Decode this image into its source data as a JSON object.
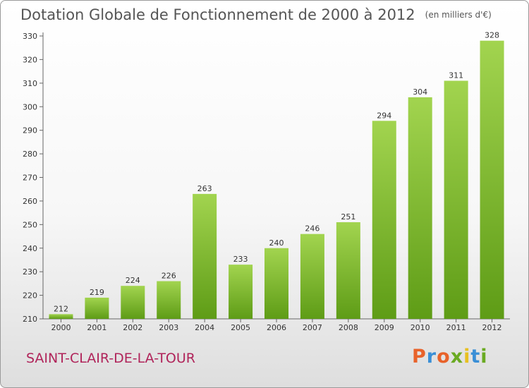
{
  "header": {
    "title": "Dotation Globale de Fonctionnement de 2000 à 2012",
    "unit": "(en milliers d'€)"
  },
  "footer": {
    "commune": "SAINT-CLAIR-DE-LA-TOUR",
    "logo": "Proxiti",
    "logo_colors": [
      "#e8622a",
      "#3a8fd6",
      "#e8622a",
      "#6aaa22",
      "#e8c020",
      "#3a8fd6",
      "#6aaa22"
    ]
  },
  "colors": {
    "bar_light": "#a2d44f",
    "bar_dark": "#5e9c16",
    "axis": "#666666",
    "commune": "#b0245a"
  },
  "chart_data": {
    "type": "bar",
    "title": "Dotation Globale de Fonctionnement de 2000 à 2012",
    "subtitle": "(en milliers d'€)",
    "xlabel": "",
    "ylabel": "",
    "categories": [
      "2000",
      "2001",
      "2002",
      "2003",
      "2004",
      "2005",
      "2006",
      "2007",
      "2008",
      "2009",
      "2010",
      "2011",
      "2012"
    ],
    "values": [
      212,
      219,
      224,
      226,
      263,
      233,
      240,
      246,
      251,
      294,
      304,
      311,
      328
    ],
    "ylim": [
      210,
      330
    ],
    "yticks": [
      210,
      220,
      230,
      240,
      250,
      260,
      270,
      280,
      290,
      300,
      310,
      320,
      330
    ],
    "grid": false,
    "data_labels": true
  }
}
